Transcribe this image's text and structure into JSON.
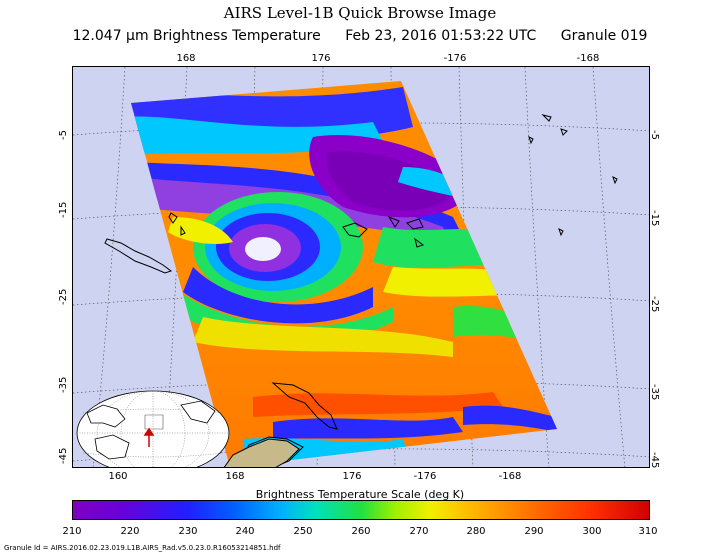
{
  "title": "AIRS Level-1B Quick Browse Image",
  "subtitle": {
    "product": "12.047 μm Brightness Temperature",
    "datetime": "Feb 23, 2016 01:53:22 UTC",
    "granule": "Granule 019"
  },
  "map": {
    "top_lon_labels": [
      "168",
      "176",
      "-176",
      "-168"
    ],
    "bottom_lon_labels": [
      "160",
      "168",
      "176",
      "-176",
      "-168"
    ],
    "left_lat_labels": [
      "-5",
      "-15",
      "-25",
      "-35",
      "-45"
    ],
    "right_lat_labels": [
      "-5",
      "-15",
      "-25",
      "-35",
      "-45"
    ],
    "background_color": "#cfd3f2"
  },
  "colorbar": {
    "label": "Brightness Temperature Scale (deg K)",
    "ticks": [
      "210",
      "220",
      "230",
      "240",
      "250",
      "260",
      "270",
      "280",
      "290",
      "300",
      "310"
    ],
    "min": 210,
    "max": 310,
    "colors": [
      "#8000c0",
      "#2020ff",
      "#00b0ff",
      "#20e040",
      "#f0f000",
      "#ff9000",
      "#ff3000",
      "#d00000"
    ]
  },
  "granule_id": "Granule Id = AIRS.2016.02.23.019.L1B.AIRS_Rad.v5.0.23.0.R16053214851.hdf"
}
